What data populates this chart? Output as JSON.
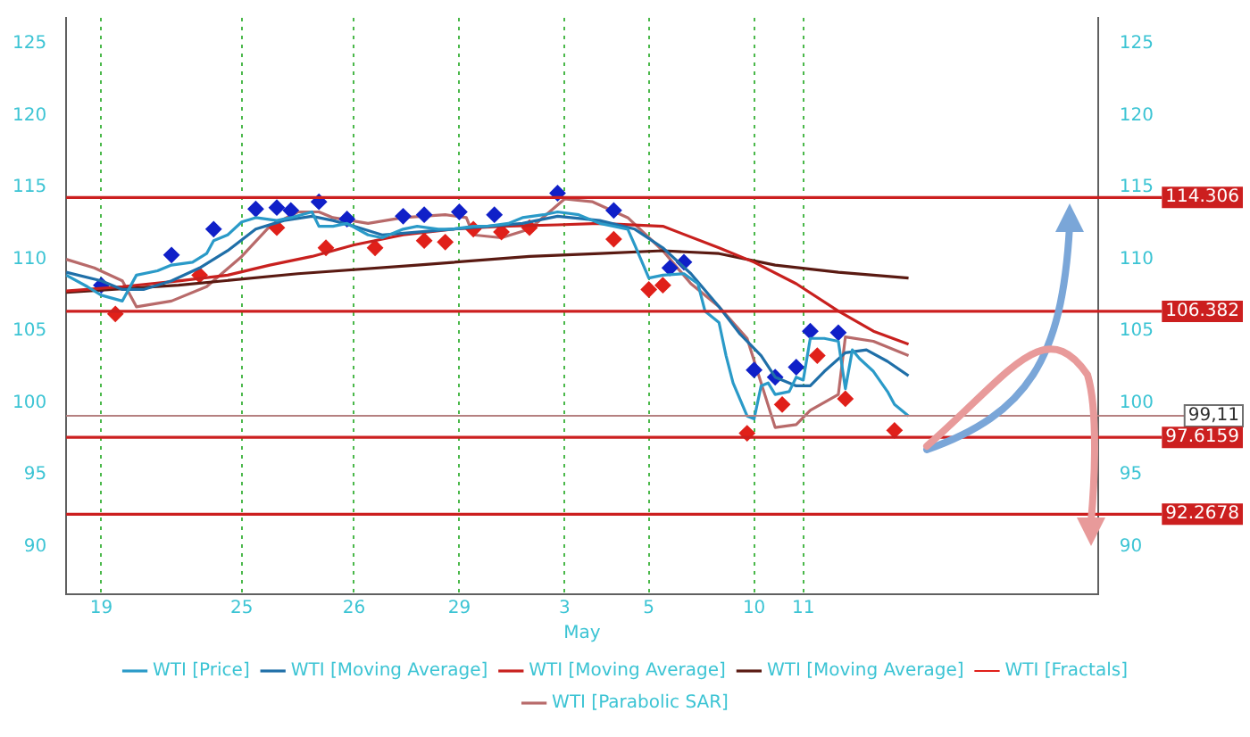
{
  "chart_data": {
    "type": "line",
    "categories": [
      null,
      null,
      null,
      null,
      null,
      "19",
      null,
      null,
      null,
      null,
      null,
      null,
      null,
      null,
      null,
      null,
      null,
      null,
      null,
      null,
      null,
      null,
      null,
      null,
      null,
      "25",
      null,
      null,
      null,
      null,
      null,
      null,
      null,
      null,
      null,
      null,
      null,
      null,
      null,
      null,
      null,
      "26",
      null,
      null,
      null,
      null,
      null,
      null,
      null,
      null,
      null,
      null,
      null,
      null,
      null,
      null,
      "29",
      null,
      null,
      null,
      null,
      null,
      null,
      null,
      null,
      null,
      null,
      null,
      null,
      null,
      null,
      "3",
      null,
      null,
      null,
      null,
      null,
      null,
      null,
      null,
      null,
      null,
      null,
      "5",
      null,
      null,
      null,
      null,
      null,
      null,
      null,
      null,
      null,
      null,
      null,
      null,
      null,
      null,
      "10",
      null,
      null,
      null,
      null,
      null,
      null,
      "11",
      null,
      null,
      null,
      null,
      null,
      null,
      null,
      null,
      null,
      null,
      null,
      null,
      null,
      null,
      null,
      null,
      null,
      null,
      null,
      null,
      null,
      null,
      null,
      null,
      null,
      null,
      null,
      null,
      null,
      null,
      null,
      null,
      null,
      null,
      null,
      null,
      null,
      null,
      null,
      null,
      null,
      null
    ],
    "ylim": [
      86.7,
      126.8
    ],
    "yticks": [
      90,
      95,
      100,
      105,
      110,
      115,
      120,
      125
    ],
    "y2lim": [
      86.7,
      126.8
    ],
    "y2ticks": [
      90,
      95,
      100,
      105,
      110,
      115,
      120,
      125
    ],
    "grid": "x",
    "legend": "bottom",
    "marker": "none",
    "series": [
      {
        "name": "WTI [Price]",
        "color": "#2a9ac8",
        "values": [
          108.9,
          null,
          null,
          108.1,
          null,
          107.5,
          null,
          null,
          107.1,
          null,
          108.9,
          null,
          null,
          109.2,
          null,
          109.6,
          null,
          null,
          109.8,
          null,
          110.4,
          111.3,
          null,
          111.7,
          null,
          112.6,
          null,
          112.9,
          null,
          null,
          112.7,
          null,
          112.9,
          null,
          null,
          113.3,
          112.3,
          null,
          112.3,
          null,
          112.5,
          null,
          null,
          111.7,
          null,
          111.5,
          null,
          null,
          112.1,
          null,
          112.3,
          null,
          null,
          112.1,
          null,
          112.1,
          null,
          null,
          112.3,
          null,
          112.3,
          null,
          null,
          112.5,
          null,
          112.9,
          null,
          null,
          113.1,
          null,
          113.3,
          null,
          null,
          113.1,
          null,
          null,
          112.5,
          null,
          null,
          null,
          112.1,
          111,
          null,
          108.7,
          null,
          108.9,
          null,
          null,
          109,
          null,
          108.3,
          106.4,
          null,
          105.6,
          103.3,
          101.4,
          null,
          99.1,
          98.9,
          101.2,
          101.4,
          100.6,
          null,
          100.8,
          101.8,
          101.6,
          104.5,
          null,
          104.5,
          null,
          104.3,
          101,
          103.7,
          103.1,
          null,
          102.2,
          null,
          100.8,
          99.9,
          null,
          99.1,
          null,
          null,
          null,
          null,
          null,
          null,
          null,
          null,
          null,
          null,
          null,
          null,
          null,
          null,
          null,
          null,
          null,
          null,
          null,
          null,
          null,
          null,
          null,
          null,
          null,
          null,
          null
        ]
      },
      {
        "name": "WTI [Moving Average]",
        "color": "#1f6fa8",
        "values": [
          109.1,
          null,
          null,
          null,
          null,
          108.5,
          null,
          null,
          107.9,
          null,
          null,
          107.9,
          null,
          null,
          null,
          108.5,
          null,
          null,
          null,
          109.4,
          null,
          null,
          null,
          110.6,
          null,
          null,
          null,
          112.1,
          null,
          null,
          null,
          112.7,
          null,
          null,
          null,
          113,
          null,
          null,
          112.7,
          null,
          null,
          112.3,
          null,
          null,
          null,
          111.7,
          null,
          null,
          null,
          null,
          111.9,
          null,
          null,
          null,
          null,
          112.1,
          null,
          null,
          null,
          null,
          112.3,
          null,
          null,
          null,
          null,
          112.5,
          null,
          null,
          null,
          null,
          113,
          null,
          null,
          null,
          null,
          null,
          112.7,
          null,
          null,
          null,
          null,
          112.1,
          null,
          null,
          null,
          110.8,
          null,
          null,
          null,
          109,
          null,
          null,
          null,
          106.7,
          null,
          null,
          104.8,
          null,
          null,
          103.3,
          null,
          101.8,
          null,
          null,
          101.2,
          null,
          101.2,
          null,
          102.2,
          null,
          null,
          103.5,
          null,
          null,
          103.7,
          null,
          null,
          102.9,
          null,
          null,
          101.9,
          null,
          null,
          null,
          null,
          null,
          null,
          null,
          null,
          null,
          null,
          null,
          null,
          null,
          null,
          null,
          null,
          null,
          null,
          null,
          null,
          null,
          null,
          null,
          null,
          null,
          null,
          null
        ]
      },
      {
        "name": "WTI [Moving Average]",
        "color": "#c8201e",
        "values": [
          107.8,
          null,
          null,
          null,
          null,
          null,
          null,
          null,
          108.1,
          null,
          null,
          null,
          null,
          null,
          null,
          null,
          108.5,
          null,
          null,
          null,
          null,
          null,
          null,
          108.9,
          null,
          null,
          null,
          null,
          null,
          109.6,
          null,
          null,
          null,
          null,
          null,
          110.2,
          null,
          null,
          null,
          null,
          null,
          111,
          null,
          null,
          null,
          null,
          null,
          null,
          111.7,
          null,
          null,
          null,
          null,
          null,
          null,
          112.1,
          null,
          null,
          null,
          null,
          null,
          null,
          112.3,
          null,
          null,
          null,
          null,
          null,
          null,
          null,
          112.4,
          null,
          null,
          null,
          null,
          null,
          112.5,
          null,
          null,
          null,
          null,
          null,
          null,
          null,
          null,
          112.3,
          null,
          null,
          null,
          null,
          null,
          null,
          null,
          110.8,
          null,
          null,
          null,
          null,
          109.8,
          null,
          null,
          null,
          null,
          null,
          108.3,
          null,
          null,
          null,
          null,
          null,
          106.4,
          null,
          null,
          null,
          null,
          105,
          null,
          null,
          null,
          null,
          104.1,
          null,
          null,
          null,
          null,
          null,
          null,
          null,
          null,
          null,
          null,
          null,
          null,
          null,
          null,
          null,
          null,
          null,
          null,
          null,
          null,
          null,
          null,
          null,
          null,
          null,
          null,
          null
        ]
      },
      {
        "name": "WTI [Moving Average]",
        "color": "#5a1a12",
        "values": [
          107.7,
          null,
          null,
          null,
          null,
          null,
          null,
          null,
          null,
          null,
          null,
          null,
          null,
          null,
          null,
          null,
          108.2,
          null,
          null,
          null,
          null,
          null,
          null,
          null,
          null,
          null,
          null,
          null,
          null,
          null,
          null,
          null,
          null,
          109,
          null,
          null,
          null,
          null,
          null,
          null,
          null,
          null,
          null,
          null,
          null,
          null,
          null,
          null,
          null,
          null,
          109.6,
          null,
          null,
          null,
          null,
          null,
          null,
          null,
          null,
          null,
          null,
          null,
          null,
          null,
          null,
          null,
          110.2,
          null,
          null,
          null,
          null,
          null,
          null,
          null,
          null,
          null,
          110.4,
          null,
          null,
          null,
          null,
          null,
          null,
          null,
          null,
          110.6,
          null,
          null,
          null,
          null,
          null,
          null,
          null,
          110.4,
          null,
          null,
          null,
          null,
          null,
          null,
          null,
          109.6,
          null,
          null,
          null,
          null,
          null,
          null,
          null,
          null,
          109.1,
          null,
          null,
          null,
          null,
          null,
          null,
          null,
          null,
          null,
          108.7,
          null,
          null,
          null,
          null,
          null,
          null,
          null,
          null,
          null,
          null,
          null,
          null,
          null,
          null,
          null,
          null,
          null,
          null,
          null,
          null,
          null,
          null,
          null,
          null,
          null,
          null,
          null
        ]
      },
      {
        "name": "WTI [Fractals]",
        "type": "scatter",
        "marker": "diamond",
        "color": "#e0201a",
        "values": [
          null,
          null,
          null,
          null,
          null,
          null,
          null,
          106.2,
          null,
          null,
          null,
          null,
          null,
          null,
          null,
          null,
          null,
          null,
          null,
          108.9,
          null,
          null,
          null,
          null,
          null,
          null,
          null,
          null,
          null,
          null,
          112.2,
          null,
          null,
          null,
          null,
          null,
          null,
          110.8,
          null,
          null,
          null,
          null,
          null,
          null,
          110.8,
          null,
          null,
          null,
          null,
          null,
          null,
          111.3,
          null,
          null,
          111.2,
          null,
          null,
          null,
          112.1,
          null,
          null,
          null,
          111.9,
          null,
          null,
          null,
          112.2,
          null,
          null,
          null,
          null,
          null,
          null,
          null,
          null,
          null,
          null,
          null,
          111.4,
          null,
          null,
          null,
          null,
          107.9,
          null,
          108.2,
          null,
          null,
          null,
          null,
          null,
          null,
          null,
          null,
          null,
          null,
          null,
          97.9,
          null,
          null,
          null,
          null,
          99.9,
          null,
          null,
          null,
          null,
          103.3,
          null,
          null,
          null,
          100.3,
          null,
          null,
          null,
          null,
          null,
          null,
          98.1,
          null,
          null,
          null,
          null,
          null,
          null,
          null,
          null,
          null,
          null,
          null,
          null,
          null,
          null,
          null,
          null,
          null,
          null,
          null,
          null,
          null,
          null,
          null,
          null,
          null,
          null,
          null,
          null,
          null
        ]
      },
      {
        "type": "scatter",
        "marker": "diamond",
        "color": "#1020c8",
        "values": [
          null,
          null,
          null,
          null,
          null,
          108.2,
          null,
          null,
          null,
          null,
          null,
          null,
          null,
          null,
          null,
          110.3,
          null,
          null,
          null,
          null,
          null,
          112.1,
          null,
          null,
          null,
          null,
          null,
          113.5,
          null,
          null,
          113.6,
          null,
          113.4,
          null,
          null,
          null,
          114,
          null,
          null,
          null,
          112.8,
          null,
          null,
          null,
          null,
          null,
          null,
          null,
          113,
          null,
          null,
          113.1,
          null,
          null,
          null,
          null,
          113.3,
          null,
          null,
          null,
          null,
          113.1,
          null,
          null,
          null,
          null,
          null,
          null,
          null,
          null,
          114.6,
          null,
          null,
          null,
          null,
          null,
          null,
          null,
          113.4,
          null,
          null,
          null,
          null,
          null,
          null,
          null,
          109.4,
          null,
          109.8,
          null,
          null,
          null,
          null,
          null,
          null,
          null,
          null,
          null,
          102.3,
          null,
          null,
          101.8,
          null,
          null,
          102.5,
          null,
          105,
          null,
          null,
          null,
          104.9,
          null,
          null,
          null,
          null,
          null,
          null,
          null,
          null,
          null,
          null,
          null,
          null,
          null,
          null,
          null,
          null,
          null,
          null,
          null,
          null,
          null,
          null,
          null,
          null,
          null,
          null,
          null,
          null,
          null,
          null,
          null,
          null,
          null,
          null,
          null,
          null,
          null
        ]
      },
      {
        "name": "WTI [Parabolic SAR]",
        "color": "#b86a6a",
        "values": [
          110,
          null,
          null,
          null,
          109.4,
          null,
          null,
          null,
          108.5,
          null,
          106.7,
          null,
          null,
          null,
          null,
          107.1,
          null,
          null,
          null,
          null,
          108.1,
          null,
          null,
          null,
          null,
          110.2,
          null,
          null,
          null,
          112.3,
          null,
          null,
          null,
          113.3,
          null,
          null,
          113.3,
          null,
          112.9,
          null,
          null,
          null,
          null,
          112.5,
          null,
          null,
          null,
          null,
          112.9,
          null,
          null,
          null,
          null,
          null,
          113.1,
          null,
          null,
          112.9,
          111.7,
          null,
          null,
          null,
          111.5,
          null,
          null,
          null,
          112.1,
          null,
          null,
          null,
          null,
          114.2,
          null,
          null,
          null,
          114,
          null,
          null,
          null,
          null,
          112.9,
          null,
          null,
          null,
          null,
          110.6,
          null,
          null,
          null,
          108.3,
          null,
          null,
          null,
          106.7,
          null,
          null,
          null,
          104.5,
          null,
          null,
          null,
          98.3,
          null,
          null,
          98.5,
          null,
          99.5,
          null,
          null,
          null,
          100.6,
          104.6,
          null,
          null,
          null,
          104.3,
          null,
          null,
          null,
          null,
          103.3,
          null,
          null,
          null,
          null,
          null,
          null,
          null,
          null,
          null,
          null,
          null,
          null,
          null,
          null,
          null,
          null,
          null,
          null,
          null,
          null,
          null,
          null,
          null,
          null,
          null,
          null,
          null
        ]
      }
    ],
    "ref_lines": [
      {
        "axis": "y2",
        "value": 114.306,
        "label": "114.306",
        "color": "#cc1f1f",
        "line_style": "solid"
      },
      {
        "axis": "y2",
        "value": 106.382,
        "label": "106.382",
        "color": "#cc1f1f",
        "line_style": "solid"
      },
      {
        "axis": "y2",
        "value": 99.11,
        "label": "99,11",
        "color": "#b58080",
        "line_style": "solid"
      },
      {
        "axis": "y2",
        "value": 97.6159,
        "label": "97.6159",
        "color": "#cc1f1f",
        "line_style": "solid"
      },
      {
        "axis": "y2",
        "value": 92.2678,
        "label": "92.2678",
        "color": "#cc1f1f",
        "line_style": "solid"
      }
    ],
    "annotations": [
      "May"
    ]
  }
}
